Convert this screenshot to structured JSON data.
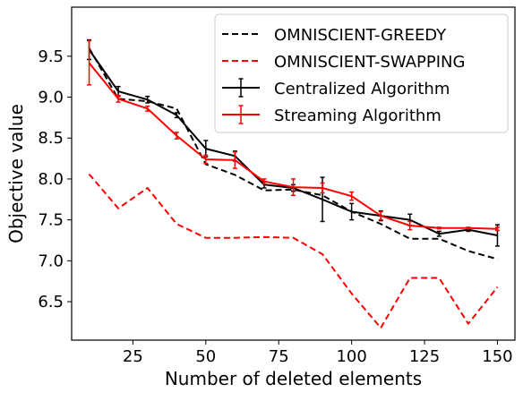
{
  "chart_data": {
    "type": "line",
    "title": "",
    "xlabel": "Number of deleted elements",
    "ylabel": "Objective value",
    "xlim": [
      4,
      156
    ],
    "ylim": [
      6.03,
      10.1
    ],
    "xticks": [
      25,
      50,
      75,
      100,
      125,
      150
    ],
    "xtick_labels": [
      "25",
      "50",
      "75",
      "100",
      "125",
      "150"
    ],
    "yticks": [
      6.5,
      7.0,
      7.5,
      8.0,
      8.5,
      9.0,
      9.5
    ],
    "ytick_labels": [
      "6.5",
      "7.0",
      "7.5",
      "8.0",
      "8.5",
      "9.0",
      "9.5"
    ],
    "grid": false,
    "legend_position": "top-right",
    "x": [
      10,
      20,
      30,
      40,
      50,
      60,
      70,
      80,
      90,
      100,
      110,
      120,
      130,
      140,
      150
    ],
    "series": [
      {
        "name": "OMNISCIENT-GREEDY",
        "color": "#000000",
        "style": "dashed",
        "errorbars": false,
        "values": [
          9.6,
          8.98,
          8.95,
          8.86,
          8.18,
          8.05,
          7.86,
          7.87,
          7.8,
          7.6,
          7.45,
          7.27,
          7.27,
          7.12,
          7.02
        ]
      },
      {
        "name": "OMNISCIENT-SWAPPING",
        "color": "#ff0000",
        "style": "dashed",
        "errorbars": false,
        "values": [
          8.06,
          7.64,
          7.89,
          7.45,
          7.28,
          7.28,
          7.29,
          7.28,
          7.08,
          6.6,
          6.18,
          6.79,
          6.79,
          6.23,
          6.68
        ]
      },
      {
        "name": "Centralized Algorithm",
        "color": "#000000",
        "style": "solid",
        "errorbars": true,
        "values": [
          9.58,
          9.07,
          8.97,
          8.78,
          8.37,
          8.28,
          7.93,
          7.89,
          7.75,
          7.6,
          7.55,
          7.5,
          7.33,
          7.38,
          7.31
        ],
        "errors": [
          0.12,
          0.06,
          0.04,
          0.03,
          0.1,
          0.06,
          0.04,
          0.04,
          0.27,
          0.1,
          0.06,
          0.07,
          0.03,
          0.02,
          0.13
        ]
      },
      {
        "name": "Streaming Algorithm",
        "color": "#ff0000",
        "style": "solid",
        "errorbars": true,
        "values": [
          9.42,
          8.98,
          8.86,
          8.53,
          8.24,
          8.23,
          7.97,
          7.9,
          7.89,
          7.79,
          7.55,
          7.43,
          7.4,
          7.4,
          7.39
        ],
        "errors": [
          0.27,
          0.04,
          0.03,
          0.04,
          0.05,
          0.1,
          0.03,
          0.1,
          0.06,
          0.05,
          0.05,
          0.05,
          0.01,
          0.01,
          0.02
        ]
      }
    ]
  }
}
